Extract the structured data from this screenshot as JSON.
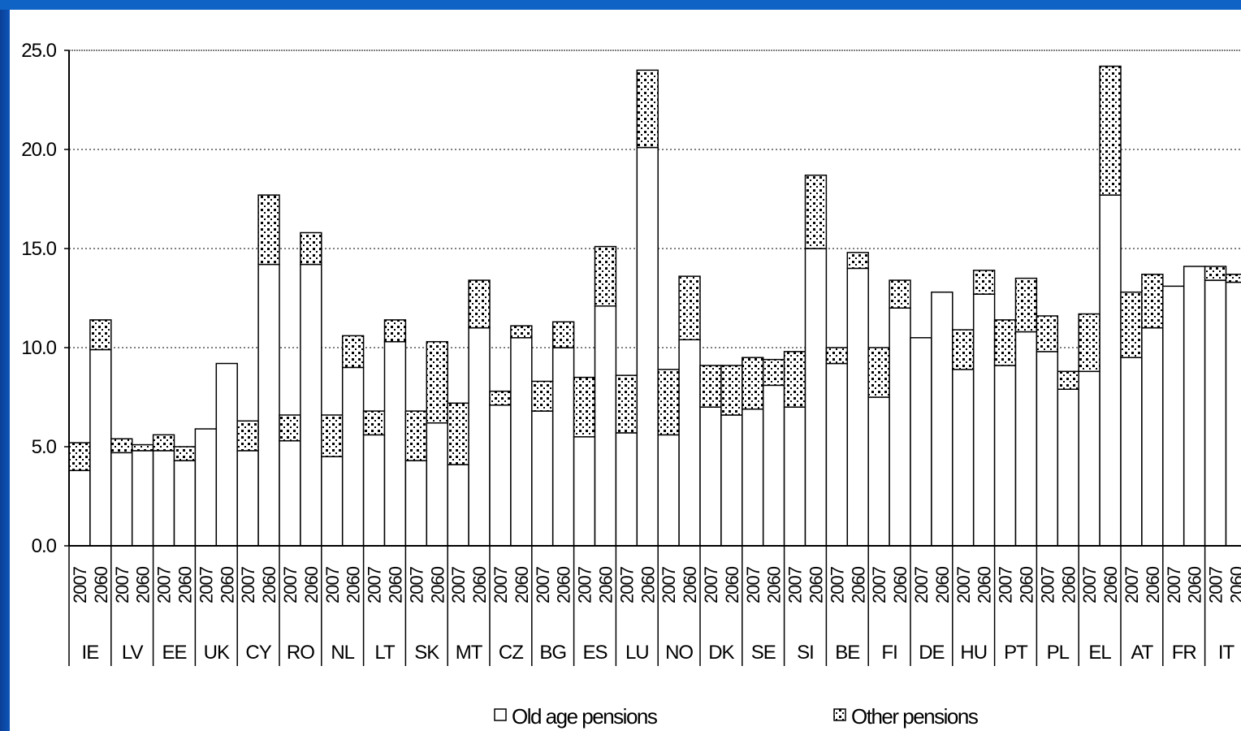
{
  "colors": {
    "frame": "#0d55b8",
    "old_fill": "#ffffff",
    "other_dots": "#000000",
    "outline": "#000000"
  },
  "chart_data": {
    "type": "bar",
    "stacked": true,
    "years": [
      "2007",
      "2060"
    ],
    "countries": [
      "IE",
      "LV",
      "EE",
      "UK",
      "CY",
      "RO",
      "NL",
      "LT",
      "SK",
      "MT",
      "CZ",
      "BG",
      "ES",
      "LU",
      "NO",
      "DK",
      "SE",
      "SI",
      "BE",
      "FI",
      "DE",
      "HU",
      "PT",
      "PL",
      "EL",
      "AT",
      "FR",
      "IT"
    ],
    "series": [
      {
        "name": "Old age pensions",
        "values": [
          3.8,
          9.9,
          4.7,
          4.8,
          4.8,
          4.3,
          5.9,
          9.2,
          4.8,
          14.2,
          5.3,
          14.2,
          4.5,
          9.0,
          5.6,
          10.3,
          4.3,
          6.2,
          4.1,
          11.0,
          7.1,
          10.5,
          6.8,
          10.0,
          5.5,
          12.1,
          5.7,
          20.1,
          5.6,
          10.4,
          7.0,
          6.6,
          6.9,
          8.1,
          7.0,
          15.0,
          9.2,
          14.0,
          7.5,
          12.0,
          10.5,
          12.8,
          8.9,
          12.7,
          9.1,
          10.8,
          9.8,
          7.9,
          8.8,
          17.7,
          9.5,
          11.0,
          13.1,
          14.1,
          13.4,
          13.3
        ]
      },
      {
        "name": "Other pensions",
        "values": [
          1.4,
          1.5,
          0.7,
          0.3,
          0.8,
          0.7,
          0.0,
          0.0,
          1.5,
          3.5,
          1.3,
          1.6,
          2.1,
          1.6,
          1.2,
          1.1,
          2.5,
          4.1,
          3.1,
          2.4,
          0.7,
          0.6,
          1.5,
          1.3,
          3.0,
          3.0,
          2.9,
          3.9,
          3.3,
          3.2,
          2.1,
          2.5,
          2.6,
          1.3,
          2.8,
          3.7,
          0.8,
          0.8,
          2.5,
          1.4,
          0.0,
          0.0,
          2.0,
          1.2,
          2.3,
          2.7,
          1.8,
          0.9,
          2.9,
          6.5,
          3.3,
          2.7,
          0.0,
          0.0,
          0.7,
          0.4
        ]
      }
    ],
    "ylim": [
      0,
      25
    ],
    "yticks": [
      "0.0",
      "5.0",
      "10.0",
      "15.0",
      "20.0",
      "25.0"
    ],
    "grid": "dotted horizontal",
    "legend_placement": "bottom"
  }
}
